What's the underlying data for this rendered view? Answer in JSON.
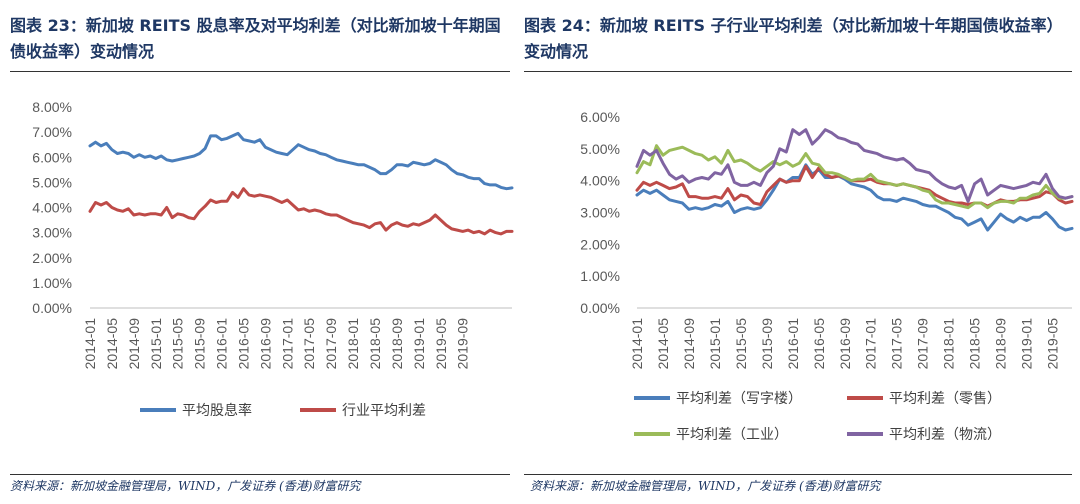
{
  "left": {
    "caption": "图表 23：新加坡 REITS 股息率及对平均利差（对比新加坡十年期国债收益率）变动情况",
    "source": "资料来源：新加坡金融管理局，WIND，广发证券 (香港)财富研究"
  },
  "right": {
    "caption": "图表 24：新加坡 REITS 子行业平均利差（对比新加坡十年期国债收益率）变动情况",
    "source": "资料来源：新加坡金融管理局，WIND，广发证券 (香港)财富研究"
  },
  "chart_data": [
    {
      "type": "line",
      "title": "",
      "xlabel": "",
      "ylabel": "",
      "ylim": [
        0,
        8
      ],
      "y_ticks": [
        "0.00%",
        "1.00%",
        "2.00%",
        "3.00%",
        "4.00%",
        "5.00%",
        "6.00%",
        "7.00%",
        "8.00%"
      ],
      "x_tick_labels": [
        "2014-01",
        "2014-05",
        "2014-09",
        "2015-01",
        "2015-05",
        "2015-09",
        "2016-01",
        "2016-05",
        "2016-09",
        "2017-01",
        "2017-05",
        "2017-09",
        "2018-01",
        "2018-05",
        "2018-09",
        "2019-01",
        "2019-05",
        "2019-09"
      ],
      "x_start": "2014-01",
      "series": [
        {
          "name": "平均股息率",
          "color": "#4a7ebb",
          "values": [
            6.45,
            6.6,
            6.45,
            6.55,
            6.3,
            6.15,
            6.2,
            6.15,
            6.0,
            6.1,
            6.0,
            6.05,
            5.95,
            6.05,
            5.9,
            5.85,
            5.9,
            5.95,
            6.0,
            6.05,
            6.15,
            6.35,
            6.85,
            6.85,
            6.7,
            6.75,
            6.85,
            6.95,
            6.7,
            6.65,
            6.6,
            6.7,
            6.4,
            6.3,
            6.2,
            6.15,
            6.1,
            6.3,
            6.5,
            6.4,
            6.3,
            6.25,
            6.15,
            6.1,
            6.0,
            5.9,
            5.85,
            5.8,
            5.75,
            5.7,
            5.7,
            5.6,
            5.5,
            5.35,
            5.35,
            5.5,
            5.7,
            5.7,
            5.65,
            5.8,
            5.75,
            5.7,
            5.75,
            5.9,
            5.8,
            5.7,
            5.5,
            5.35,
            5.3,
            5.2,
            5.15,
            5.15,
            4.95,
            4.9,
            4.9,
            4.8,
            4.75,
            4.78
          ]
        },
        {
          "name": "行业平均利差",
          "color": "#be4b48",
          "values": [
            3.85,
            4.2,
            4.1,
            4.2,
            4.0,
            3.9,
            3.85,
            3.95,
            3.7,
            3.75,
            3.7,
            3.75,
            3.75,
            3.7,
            4.0,
            3.6,
            3.75,
            3.7,
            3.6,
            3.55,
            3.85,
            4.05,
            4.3,
            4.2,
            4.25,
            4.25,
            4.6,
            4.4,
            4.75,
            4.5,
            4.45,
            4.5,
            4.45,
            4.4,
            4.3,
            4.2,
            4.3,
            4.1,
            3.9,
            3.95,
            3.85,
            3.9,
            3.85,
            3.75,
            3.7,
            3.7,
            3.6,
            3.5,
            3.4,
            3.35,
            3.3,
            3.2,
            3.35,
            3.4,
            3.1,
            3.3,
            3.4,
            3.3,
            3.25,
            3.35,
            3.3,
            3.4,
            3.5,
            3.7,
            3.5,
            3.3,
            3.15,
            3.1,
            3.05,
            3.1,
            3.0,
            3.05,
            2.95,
            3.1,
            3.0,
            2.95,
            3.05,
            3.05
          ]
        }
      ],
      "legend": "bottom"
    },
    {
      "type": "line",
      "title": "",
      "xlabel": "",
      "ylabel": "",
      "ylim": [
        0,
        6
      ],
      "y_ticks": [
        "0.00%",
        "1.00%",
        "2.00%",
        "3.00%",
        "4.00%",
        "5.00%",
        "6.00%"
      ],
      "x_tick_labels": [
        "2014-01",
        "2014-05",
        "2014-09",
        "2015-01",
        "2015-05",
        "2015-09",
        "2016-01",
        "2016-05",
        "2016-09",
        "2017-01",
        "2017-05",
        "2017-09",
        "2018-01",
        "2018-05",
        "2018-09",
        "2019-01",
        "2019-05"
      ],
      "x_start": "2014-01",
      "series": [
        {
          "name": "平均利差（写字楼）",
          "color": "#4a7ebb",
          "values": [
            3.55,
            3.7,
            3.6,
            3.7,
            3.55,
            3.4,
            3.35,
            3.3,
            3.1,
            3.15,
            3.1,
            3.15,
            3.25,
            3.2,
            3.35,
            3.0,
            3.1,
            3.15,
            3.1,
            3.15,
            3.4,
            3.7,
            4.05,
            3.95,
            4.1,
            4.1,
            4.5,
            4.2,
            4.35,
            4.1,
            4.1,
            4.15,
            4.05,
            3.9,
            3.85,
            3.8,
            3.7,
            3.5,
            3.4,
            3.4,
            3.35,
            3.45,
            3.4,
            3.35,
            3.25,
            3.2,
            3.2,
            3.1,
            3.0,
            2.85,
            2.8,
            2.6,
            2.7,
            2.8,
            2.45,
            2.7,
            2.95,
            2.8,
            2.7,
            2.85,
            2.75,
            2.85,
            2.85,
            3.0,
            2.8,
            2.55,
            2.45,
            2.5
          ]
        },
        {
          "name": "平均利差（零售）",
          "color": "#be4b48",
          "values": [
            3.7,
            3.95,
            3.85,
            3.95,
            3.85,
            3.75,
            3.8,
            3.9,
            3.5,
            3.5,
            3.45,
            3.45,
            3.5,
            3.45,
            3.75,
            3.4,
            3.55,
            3.5,
            3.3,
            3.25,
            3.65,
            3.85,
            4.05,
            3.95,
            4.0,
            4.0,
            4.45,
            4.1,
            4.4,
            4.2,
            4.1,
            4.15,
            4.1,
            4.0,
            4.0,
            4.0,
            4.05,
            3.95,
            3.9,
            3.9,
            3.85,
            3.9,
            3.85,
            3.8,
            3.75,
            3.7,
            3.55,
            3.45,
            3.35,
            3.3,
            3.3,
            3.25,
            3.3,
            3.3,
            3.2,
            3.3,
            3.4,
            3.35,
            3.35,
            3.4,
            3.4,
            3.45,
            3.5,
            3.65,
            3.6,
            3.4,
            3.3,
            3.35
          ]
        },
        {
          "name": "平均利差（工业）",
          "color": "#9bbb59",
          "values": [
            4.25,
            4.6,
            4.5,
            5.1,
            4.8,
            4.95,
            5.0,
            5.05,
            4.95,
            4.85,
            4.8,
            4.65,
            4.75,
            4.55,
            4.95,
            4.6,
            4.65,
            4.55,
            4.4,
            4.3,
            4.45,
            4.6,
            4.5,
            4.6,
            4.45,
            4.55,
            4.85,
            4.55,
            4.5,
            4.25,
            4.25,
            4.2,
            4.1,
            4.0,
            4.05,
            4.05,
            4.2,
            4.0,
            3.95,
            3.9,
            3.85,
            3.9,
            3.85,
            3.8,
            3.7,
            3.65,
            3.4,
            3.3,
            3.3,
            3.25,
            3.2,
            3.15,
            3.3,
            3.3,
            3.15,
            3.3,
            3.35,
            3.35,
            3.3,
            3.45,
            3.45,
            3.55,
            3.6,
            3.85,
            3.6,
            3.45,
            3.45,
            3.5
          ]
        },
        {
          "name": "平均利差（物流）",
          "color": "#8064a2",
          "values": [
            4.45,
            4.95,
            4.8,
            4.95,
            4.55,
            4.2,
            4.05,
            4.15,
            3.95,
            4.05,
            4.1,
            4.05,
            4.25,
            4.2,
            4.5,
            3.95,
            3.85,
            3.85,
            3.95,
            3.85,
            4.25,
            4.45,
            5.0,
            4.9,
            5.6,
            5.45,
            5.6,
            5.15,
            5.35,
            5.6,
            5.5,
            5.35,
            5.3,
            5.2,
            5.15,
            4.95,
            4.9,
            4.85,
            4.75,
            4.7,
            4.65,
            4.7,
            4.55,
            4.35,
            4.3,
            4.25,
            4.05,
            3.9,
            3.8,
            3.75,
            3.85,
            3.35,
            3.9,
            4.05,
            3.55,
            3.7,
            3.85,
            3.8,
            3.75,
            3.8,
            3.85,
            3.95,
            3.9,
            4.2,
            3.75,
            3.5,
            3.45,
            3.5
          ]
        }
      ],
      "legend": "bottom"
    }
  ]
}
